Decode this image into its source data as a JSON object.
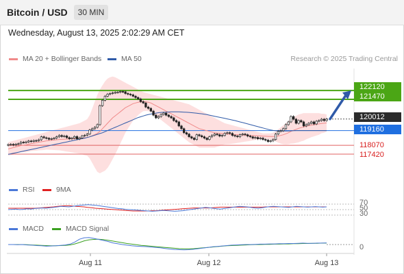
{
  "header": {
    "title": "Bitcoin / USD",
    "timeframe": "30 MIN"
  },
  "date_line": "Wednesday, August 13, 2025 2:02:29 AM CET",
  "credit": "Research © 2025 Trading Central",
  "legend": {
    "ma20": {
      "label": "MA 20 + Bollinger Bands",
      "color": "#f08a8a"
    },
    "ma50": {
      "label": "MA 50",
      "color": "#2f5aa8"
    },
    "rsi": {
      "label": "RSI",
      "color": "#4a78d8"
    },
    "rsi_ma": {
      "label": "9MA",
      "color": "#e02020"
    },
    "macd": {
      "label": "MACD",
      "color": "#4a78d8"
    },
    "macd_signal": {
      "label": "MACD Signal",
      "color": "#3aa020"
    }
  },
  "price_labels": {
    "r2": "122120",
    "r1": "121470",
    "last": "120012",
    "pivot": "119160",
    "s1": "118070",
    "s2": "117420"
  },
  "rsi_ticks": [
    "70",
    "50",
    "30"
  ],
  "macd_tick": "0",
  "x_ticks": [
    "Aug 11",
    "Aug 12",
    "Aug 13"
  ],
  "chart_data": {
    "type": "candlestick",
    "x_axis_labels": [
      "Aug 11",
      "Aug 12",
      "Aug 13"
    ],
    "y_range": [
      116000,
      123900
    ],
    "last_price": 120012,
    "levels": {
      "resistance": [
        122120,
        121470
      ],
      "pivot": 119160,
      "support": [
        118070,
        117420
      ]
    },
    "forecast_arrow": {
      "from": 120012,
      "to": 122120,
      "direction": "up"
    },
    "close": [
      118120,
      118140,
      118090,
      118150,
      118190,
      118300,
      118280,
      118320,
      118390,
      118360,
      118420,
      118410,
      118480,
      118700,
      118630,
      118590,
      118520,
      118560,
      118600,
      118700,
      118800,
      118720,
      118760,
      118640,
      118550,
      118600,
      118720,
      118540,
      118620,
      118760,
      118810,
      118900,
      119200,
      119300,
      119400,
      119600,
      121000,
      121400,
      121700,
      121850,
      121900,
      121950,
      121980,
      122000,
      122050,
      122030,
      121900,
      121850,
      121800,
      121700,
      121600,
      121500,
      121300,
      121200,
      120900,
      120800,
      120600,
      120300,
      120100,
      120200,
      120350,
      120450,
      120300,
      120200,
      120100,
      119900,
      119800,
      119500,
      119300,
      119000,
      118900,
      118700,
      118600,
      118500,
      118850,
      118780,
      118700,
      118600,
      118500,
      118700,
      118800,
      118900,
      118850,
      118750,
      118800,
      118950,
      119000,
      118950,
      118800,
      118750,
      118700,
      118850,
      118900,
      118850,
      118750,
      118700,
      118600,
      118650,
      118550,
      118600,
      118500,
      118450,
      118350,
      118400,
      118500,
      118900,
      119100,
      119150,
      119300,
      119600,
      119800,
      120200,
      120000,
      119700,
      119900,
      119800,
      119500,
      119600,
      119700,
      119800,
      119650,
      119850,
      119900,
      120000,
      119900,
      120012
    ],
    "ma20": [
      117800,
      117850,
      117900,
      117950,
      118000,
      118050,
      118080,
      118100,
      118150,
      118200,
      118230,
      118260,
      118300,
      118330,
      118360,
      118400,
      118420,
      118440,
      118460,
      118480,
      118500,
      118510,
      118520,
      118530,
      118540,
      118550,
      118560,
      118570,
      118580,
      118600,
      118620,
      118650,
      118700,
      118780,
      118860,
      118950,
      119100,
      119300,
      119500,
      119700,
      119900,
      120100,
      120250,
      120400,
      120550,
      120700,
      120850,
      120950,
      121050,
      121150,
      121200,
      121250,
      121280,
      121300,
      121280,
      121250,
      121200,
      121100,
      121000,
      120900,
      120800,
      120700,
      120600,
      120500,
      120400,
      120300,
      120200,
      120100,
      120000,
      119900,
      119800,
      119700,
      119600,
      119500,
      119400,
      119300,
      119250,
      119200,
      119150,
      119100,
      119050,
      119000,
      118980,
      118960,
      118940,
      118920,
      118900,
      118880,
      118870,
      118860,
      118850,
      118840,
      118830,
      118820,
      118810,
      118800,
      118790,
      118780,
      118770,
      118760,
      118750,
      118740,
      118730,
      118720,
      118720,
      118730,
      118760,
      118800,
      118850,
      118920,
      119000,
      119100,
      119180,
      119250,
      119320,
      119380,
      119430,
      119480,
      119520,
      119560,
      119590,
      119620,
      119650,
      119680,
      119700,
      119720
    ],
    "bb_upper": [
      118300,
      118350,
      118400,
      118450,
      118500,
      118550,
      118600,
      118650,
      118700,
      118750,
      118800,
      118850,
      118900,
      118950,
      119000,
      119050,
      119100,
      119150,
      119200,
      119250,
      119300,
      119350,
      119400,
      119450,
      119500,
      119550,
      119600,
      119650,
      119700,
      119800,
      119900,
      120000,
      120300,
      120800,
      121300,
      121800,
      122200,
      122500,
      122800,
      123000,
      123100,
      123150,
      123100,
      123000,
      122900,
      122800,
      122700,
      122600,
      122500,
      122400,
      122300,
      122200,
      122100,
      122000,
      121950,
      121900,
      121850,
      121800,
      121750,
      121700,
      121650,
      121600,
      121550,
      121500,
      121450,
      121400,
      121350,
      121300,
      121250,
      121200,
      121150,
      121100,
      121000,
      120900,
      120800,
      120700,
      120600,
      120500,
      120400,
      120300,
      120200,
      120100,
      120000,
      119900,
      119800,
      119700,
      119650,
      119600,
      119550,
      119500,
      119450,
      119400,
      119350,
      119300,
      119250,
      119200,
      119150,
      119100,
      119050,
      119000,
      118950,
      118950,
      118950,
      118950,
      119000,
      119100,
      119250,
      119400,
      119550,
      119700,
      119850,
      120000,
      120150,
      120250,
      120350,
      120400,
      120450,
      120450,
      120450,
      120450,
      120450,
      120450,
      120450,
      120400,
      120400,
      120350
    ],
    "bb_lower": [
      117300,
      117350,
      117400,
      117450,
      117500,
      117550,
      117560,
      117550,
      117600,
      117650,
      117660,
      117670,
      117700,
      117710,
      117720,
      117750,
      117740,
      117730,
      117720,
      117710,
      117700,
      117670,
      117640,
      117610,
      117580,
      117550,
      117520,
      117490,
      117460,
      117400,
      117340,
      117300,
      117100,
      116760,
      116420,
      116100,
      116000,
      116100,
      116200,
      116400,
      116700,
      117050,
      117400,
      117800,
      118200,
      118600,
      119000,
      119300,
      119600,
      119900,
      120100,
      120300,
      120460,
      120600,
      120610,
      120600,
      120550,
      120400,
      120250,
      120100,
      119950,
      119800,
      119650,
      119500,
      119350,
      119200,
      119050,
      118900,
      118750,
      118600,
      118450,
      118300,
      118200,
      118100,
      118000,
      117900,
      117900,
      117900,
      117900,
      117900,
      117900,
      117900,
      117960,
      118020,
      118080,
      118140,
      118150,
      118160,
      118190,
      118220,
      118250,
      118280,
      118310,
      118340,
      118370,
      118400,
      118430,
      118460,
      118490,
      118520,
      118550,
      118530,
      118510,
      118490,
      118440,
      118360,
      118270,
      118200,
      118150,
      118140,
      118150,
      118200,
      118210,
      118250,
      118290,
      118360,
      118410,
      118510,
      118590,
      118670,
      118730,
      118790,
      118850,
      118960,
      119000,
      119090
    ],
    "ma50": [
      117400,
      117440,
      117480,
      117520,
      117560,
      117600,
      117640,
      117680,
      117720,
      117760,
      117800,
      117840,
      117880,
      117920,
      117960,
      118000,
      118040,
      118080,
      118120,
      118160,
      118200,
      118240,
      118280,
      118320,
      118360,
      118400,
      118440,
      118480,
      118520,
      118560,
      118600,
      118650,
      118700,
      118760,
      118820,
      118880,
      118940,
      119000,
      119080,
      119160,
      119240,
      119320,
      119400,
      119480,
      119560,
      119640,
      119720,
      119800,
      119880,
      119960,
      120040,
      120120,
      120180,
      120240,
      120300,
      120340,
      120380,
      120420,
      120450,
      120480,
      120500,
      120510,
      120520,
      120530,
      120540,
      120540,
      120540,
      120540,
      120530,
      120520,
      120510,
      120500,
      120480,
      120460,
      120440,
      120420,
      120400,
      120370,
      120340,
      120300,
      120260,
      120220,
      120180,
      120140,
      120100,
      120060,
      120020,
      119980,
      119940,
      119900,
      119850,
      119800,
      119750,
      119700,
      119650,
      119600,
      119550,
      119500,
      119450,
      119400,
      119350,
      119300,
      119250,
      119200,
      119170,
      119150,
      119140,
      119130,
      119130,
      119130,
      119130,
      119140,
      119150,
      119160,
      119160,
      119160,
      119160,
      119160,
      119160,
      119160,
      119160,
      119160,
      119160,
      119160,
      119160,
      119160
    ],
    "rsi": {
      "series": [
        50,
        51,
        52,
        50,
        51,
        53,
        52,
        54,
        55,
        56,
        55,
        57,
        58,
        60,
        62,
        61,
        60,
        62,
        64,
        66,
        67,
        68,
        67,
        66,
        64,
        62,
        60,
        58,
        56,
        54,
        53,
        51,
        50,
        49,
        48,
        47,
        46,
        45,
        44,
        45,
        46,
        47,
        46,
        45,
        44,
        45,
        46,
        48,
        50,
        52,
        54,
        56,
        58,
        57,
        55,
        53,
        52,
        54,
        56,
        58,
        60,
        62,
        61,
        60,
        58,
        56,
        55,
        57,
        59,
        61,
        62,
        61,
        60,
        59,
        58,
        60,
        62,
        61,
        60,
        59,
        60,
        61,
        60,
        59,
        60
      ],
      "ma9": [
        55,
        55,
        55,
        55,
        55,
        55,
        55,
        55,
        56,
        57,
        58,
        59,
        60,
        62,
        63,
        64,
        64,
        63,
        62,
        61,
        60,
        58,
        57,
        55,
        54,
        53,
        52,
        51,
        50,
        49,
        48,
        47,
        46,
        45,
        45,
        45,
        45,
        45,
        46,
        46,
        47,
        48,
        49,
        50,
        51,
        52,
        53,
        54,
        55,
        56,
        56,
        56,
        56,
        56,
        57,
        58,
        59,
        59,
        59,
        59,
        59,
        59,
        59,
        59,
        59,
        59,
        59,
        59,
        60,
        60,
        60,
        60,
        60,
        60,
        60,
        60,
        60,
        60,
        60,
        60,
        60,
        60,
        60,
        60,
        60
      ],
      "levels": [
        70,
        50,
        30
      ]
    },
    "macd": {
      "macd": [
        0,
        0,
        -10,
        0,
        -20,
        -30,
        -50,
        -60,
        -80,
        -70,
        -60,
        -40,
        -20,
        20,
        120,
        260,
        330,
        340,
        300,
        250,
        200,
        150,
        80,
        40,
        0,
        -30,
        -60,
        -80,
        -90,
        -100,
        -120,
        -140,
        -160,
        -190,
        -220,
        -240,
        -250,
        -260,
        -250,
        -230,
        -200,
        -170,
        -140,
        -110,
        -90,
        -70,
        -50,
        -30,
        -20,
        -10,
        0,
        0,
        10,
        20,
        20,
        30,
        30,
        40,
        40,
        50,
        50,
        60,
        70,
        60,
        60,
        70,
        70,
        80
      ],
      "signal": [
        0,
        0,
        0,
        0,
        -10,
        -20,
        -30,
        -40,
        -50,
        -60,
        -60,
        -50,
        -40,
        -20,
        30,
        100,
        180,
        230,
        250,
        260,
        240,
        210,
        170,
        130,
        90,
        50,
        20,
        -10,
        -40,
        -60,
        -80,
        -100,
        -120,
        -140,
        -160,
        -180,
        -200,
        -210,
        -210,
        -200,
        -180,
        -160,
        -140,
        -120,
        -100,
        -80,
        -60,
        -50,
        -40,
        -30,
        -20,
        -10,
        0,
        0,
        10,
        10,
        20,
        20,
        30,
        30,
        40,
        40,
        50,
        50,
        60,
        60,
        70,
        70
      ]
    }
  }
}
